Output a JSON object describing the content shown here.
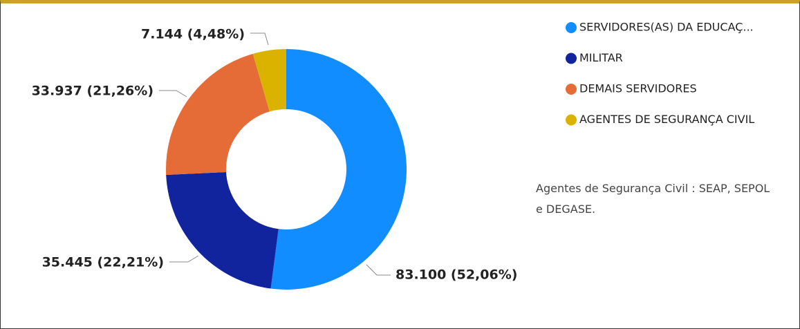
{
  "chart_data": {
    "type": "donut",
    "categories": [
      "SERVIDORES(AS) DA EDUCAÇ...",
      "MILITAR",
      "DEMAIS SERVIDORES",
      "AGENTES DE SEGURANÇA CIVIL"
    ],
    "values": [
      83100,
      35445,
      33937,
      7144
    ],
    "value_labels": [
      "83.100 (52,06%)",
      "35.445 (22,21%)",
      "33.937 (21,26%)",
      "7.144 (4,48%)"
    ],
    "colors": [
      "#118dff",
      "#12239e",
      "#e66c37",
      "#d9b300"
    ],
    "legend": "top-right",
    "annotation": "Agentes de Segurança Civil : SEAP, SEPOL e DEGASE."
  }
}
